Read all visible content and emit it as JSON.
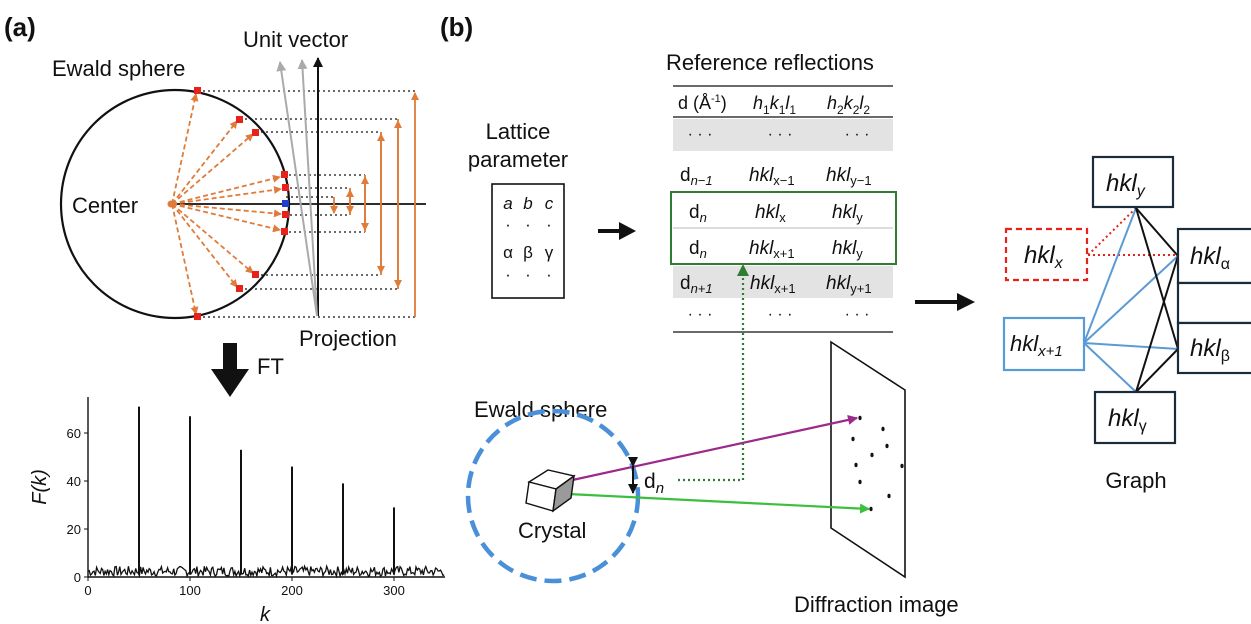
{
  "panel_a": {
    "label": "(a)",
    "ewald_sphere": "Ewald sphere",
    "unit_vector": "Unit vector",
    "center": "Center",
    "projection": "Projection",
    "ft": "FT",
    "colors": {
      "arrow": "#e07b39",
      "point": "#e8221b",
      "center_point": "#1f3fd0",
      "unit_vectors": "#aaaaaa"
    }
  },
  "chart_data": {
    "type": "line",
    "xlabel": "k",
    "ylabel": "F(k)",
    "xlim": [
      0,
      350
    ],
    "ylim": [
      0,
      75
    ],
    "xticks": [
      0,
      100,
      200,
      300
    ],
    "yticks": [
      0,
      20,
      40,
      60
    ],
    "peaks": [
      {
        "x": 50,
        "y": 71
      },
      {
        "x": 100,
        "y": 67
      },
      {
        "x": 150,
        "y": 53
      },
      {
        "x": 200,
        "y": 46
      },
      {
        "x": 250,
        "y": 39
      },
      {
        "x": 300,
        "y": 29
      }
    ],
    "noise_level": 3,
    "grid": false
  },
  "panel_b": {
    "label": "(b)",
    "lattice": {
      "title_line1": "Lattice",
      "title_line2": "parameter",
      "row1": [
        "a",
        "b",
        "c"
      ],
      "row2": [
        "α",
        "β",
        "γ"
      ],
      "dots": "·"
    },
    "table": {
      "title": "Reference reflections",
      "headers": [
        "d (Å",
        "-1",
        ")",
        "h",
        "1",
        "k",
        "1",
        "l",
        "1",
        "h",
        "2",
        "k",
        "2",
        "l",
        "2"
      ],
      "ellipsis": "· · ·",
      "rows": [
        {
          "d": "d",
          "d_sub": "n−1",
          "c1": "hkl",
          "c1_sub": "x−1",
          "c2": "hkl",
          "c2_sub": "y−1"
        },
        {
          "d": "d",
          "d_sub": "n",
          "c1": "hkl",
          "c1_sub": "x",
          "c2": "hkl",
          "c2_sub": "y"
        },
        {
          "d": "d",
          "d_sub": "n",
          "c1": "hkl",
          "c1_sub": "x+1",
          "c2": "hkl",
          "c2_sub": "y"
        },
        {
          "d": "d",
          "d_sub": "n+1",
          "c1": "hkl",
          "c1_sub": "x+1",
          "c2": "hkl",
          "c2_sub": "y+1"
        }
      ],
      "highlight_color": "#2e7d32"
    },
    "scatter": {
      "ewald_sphere": "Ewald sphere",
      "crystal": "Crystal",
      "dn": "d",
      "dn_sub": "n",
      "diffraction_image": "Diffraction image",
      "colors": {
        "sphere": "#4a90d9",
        "beam_purple": "#9b2a8a",
        "beam_green": "#3cbf3c",
        "dotted": "#2e7d32"
      }
    },
    "graph": {
      "caption": "Graph",
      "nodes": [
        {
          "id": "hkl_y_top",
          "text": "hkl",
          "sub": "y",
          "style": "solid"
        },
        {
          "id": "hkl_x",
          "text": "hkl",
          "sub": "x",
          "style": "dashed-red"
        },
        {
          "id": "hkl_alpha",
          "text": "hkl",
          "sub": "α",
          "style": "solid"
        },
        {
          "id": "hkl_x1",
          "text": "hkl",
          "sub": "x+1",
          "style": "blue"
        },
        {
          "id": "hkl_beta",
          "text": "hkl",
          "sub": "β",
          "style": "solid"
        },
        {
          "id": "hkl_gamma",
          "text": "hkl",
          "sub": "γ",
          "style": "solid"
        }
      ],
      "colors": {
        "node": "#1c2b3a",
        "red": "#e8221b",
        "blue": "#5a9bd5"
      }
    }
  }
}
